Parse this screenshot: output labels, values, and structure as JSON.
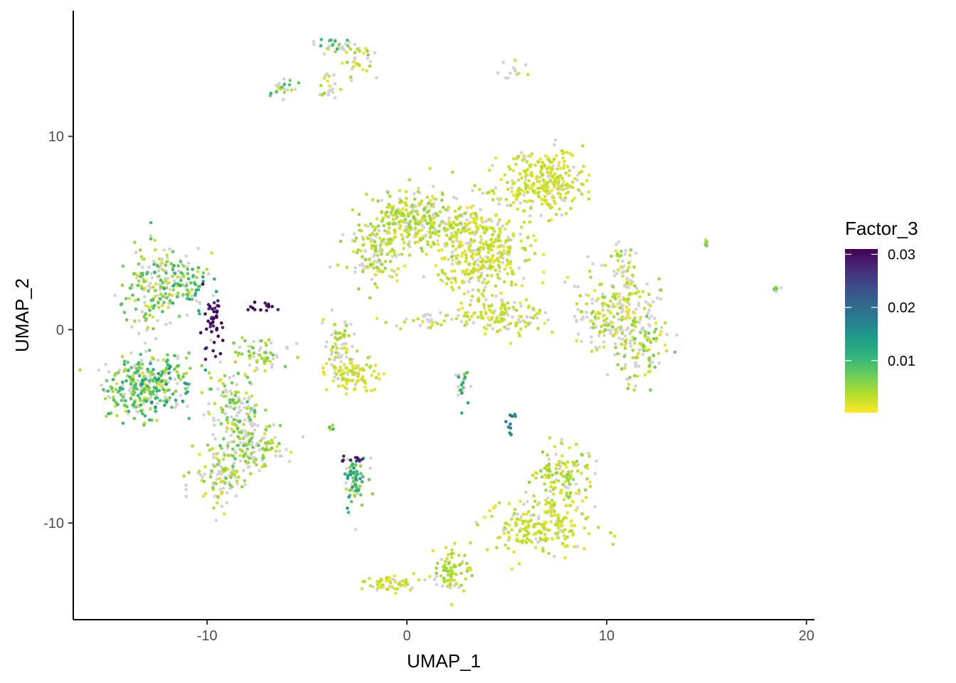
{
  "chart_data": {
    "type": "scatter",
    "title": "",
    "xlabel": "UMAP_1",
    "ylabel": "UMAP_2",
    "xlim": [
      -16.7,
      20.4
    ],
    "ylim": [
      -15.0,
      16.5
    ],
    "x_ticks": [
      -10,
      0,
      10,
      20
    ],
    "x_tick_labels": [
      "-10",
      "0",
      "10",
      "20"
    ],
    "y_ticks": [
      10,
      0,
      -10
    ],
    "y_tick_labels": [
      "10",
      "0",
      "-10"
    ],
    "grid": false,
    "legend": {
      "title": "Factor_3",
      "position": "right",
      "type": "colorbar",
      "range": [
        0.0002,
        0.031
      ],
      "ticks": [
        0.03,
        0.02,
        0.01
      ],
      "tick_labels": [
        "0.03",
        "0.02",
        "0.01"
      ],
      "colors": [
        "#FDE725",
        "#B4DE2C",
        "#6DCD59",
        "#35B779",
        "#1F9E89",
        "#26828E",
        "#31688E",
        "#3E4A89",
        "#482878",
        "#440154"
      ]
    },
    "na_color": "#D3D3D3",
    "note_points": "approximate reconstruction of the point cloud; each cluster listed with center, spread, point count and typical Factor_3 level",
    "clusters": [
      {
        "cx": -13.3,
        "cy": -3.0,
        "sx": 1.1,
        "sy": 1.0,
        "n": 260,
        "level": 0.006,
        "na": 0.25
      },
      {
        "cx": -13.0,
        "cy": 2.0,
        "sx": 0.9,
        "sy": 1.4,
        "n": 140,
        "level": 0.005,
        "na": 0.35
      },
      {
        "cx": -11.2,
        "cy": 2.5,
        "sx": 1.0,
        "sy": 1.0,
        "n": 120,
        "level": 0.007,
        "na": 0.35
      },
      {
        "cx": -11.8,
        "cy": -2.6,
        "sx": 0.9,
        "sy": 0.9,
        "n": 90,
        "level": 0.008,
        "na": 0.3
      },
      {
        "cx": -8.7,
        "cy": -4.2,
        "sx": 0.9,
        "sy": 1.3,
        "n": 150,
        "level": 0.005,
        "na": 0.45
      },
      {
        "cx": -7.8,
        "cy": -6.0,
        "sx": 1.0,
        "sy": 0.8,
        "n": 120,
        "level": 0.004,
        "na": 0.4
      },
      {
        "cx": -9.3,
        "cy": -7.6,
        "sx": 0.9,
        "sy": 0.9,
        "n": 110,
        "level": 0.004,
        "na": 0.5
      },
      {
        "cx": -7.2,
        "cy": -1.2,
        "sx": 1.0,
        "sy": 0.5,
        "n": 60,
        "level": 0.004,
        "na": 0.4
      },
      {
        "cx": -9.8,
        "cy": 0.3,
        "sx": 0.35,
        "sy": 0.9,
        "n": 45,
        "level": 0.03,
        "na": 0.0
      },
      {
        "cx": -7.5,
        "cy": 1.1,
        "sx": 0.5,
        "sy": 0.2,
        "n": 14,
        "level": 0.03,
        "na": 0.0
      },
      {
        "cx": -3.3,
        "cy": -0.8,
        "sx": 0.45,
        "sy": 0.9,
        "n": 70,
        "level": 0.003,
        "na": 0.5
      },
      {
        "cx": -2.5,
        "cy": -2.4,
        "sx": 0.8,
        "sy": 0.5,
        "n": 90,
        "level": 0.002,
        "na": 0.25
      },
      {
        "cx": -2.6,
        "cy": -7.9,
        "sx": 0.4,
        "sy": 0.9,
        "n": 75,
        "level": 0.008,
        "na": 0.35
      },
      {
        "cx": -2.6,
        "cy": -6.8,
        "sx": 0.5,
        "sy": 0.15,
        "n": 10,
        "level": 0.028,
        "na": 0.0
      },
      {
        "cx": -3.8,
        "cy": -5.1,
        "sx": 0.15,
        "sy": 0.15,
        "n": 6,
        "level": 0.006,
        "na": 0.3
      },
      {
        "cx": -3.6,
        "cy": 14.7,
        "sx": 0.5,
        "sy": 0.3,
        "n": 30,
        "level": 0.006,
        "na": 0.5
      },
      {
        "cx": -2.4,
        "cy": 14.0,
        "sx": 0.6,
        "sy": 0.5,
        "n": 30,
        "level": 0.003,
        "na": 0.5
      },
      {
        "cx": -3.9,
        "cy": 12.6,
        "sx": 0.3,
        "sy": 0.5,
        "n": 20,
        "level": 0.003,
        "na": 0.6
      },
      {
        "cx": -6.2,
        "cy": 12.5,
        "sx": 0.4,
        "sy": 0.3,
        "n": 25,
        "level": 0.006,
        "na": 0.5
      },
      {
        "cx": 5.4,
        "cy": 13.4,
        "sx": 0.4,
        "sy": 0.4,
        "n": 14,
        "level": 0.004,
        "na": 0.5
      },
      {
        "cx": 0.5,
        "cy": 5.5,
        "sx": 1.6,
        "sy": 1.0,
        "n": 320,
        "level": 0.003,
        "na": 0.3
      },
      {
        "cx": -1.6,
        "cy": 4.0,
        "sx": 0.9,
        "sy": 1.0,
        "n": 120,
        "level": 0.003,
        "na": 0.3
      },
      {
        "cx": 3.8,
        "cy": 4.0,
        "sx": 1.4,
        "sy": 1.7,
        "n": 420,
        "level": 0.002,
        "na": 0.2
      },
      {
        "cx": 6.8,
        "cy": 7.6,
        "sx": 1.3,
        "sy": 1.0,
        "n": 280,
        "level": 0.002,
        "na": 0.2
      },
      {
        "cx": 5.0,
        "cy": 0.7,
        "sx": 1.2,
        "sy": 0.6,
        "n": 120,
        "level": 0.002,
        "na": 0.3
      },
      {
        "cx": 1.2,
        "cy": 0.5,
        "sx": 1.4,
        "sy": 0.3,
        "n": 40,
        "level": 0.002,
        "na": 0.45
      },
      {
        "cx": 10.6,
        "cy": 0.8,
        "sx": 1.3,
        "sy": 1.3,
        "n": 230,
        "level": 0.003,
        "na": 0.45
      },
      {
        "cx": 11.7,
        "cy": -1.0,
        "sx": 0.9,
        "sy": 1.0,
        "n": 90,
        "level": 0.004,
        "na": 0.4
      },
      {
        "cx": 10.8,
        "cy": 3.4,
        "sx": 0.5,
        "sy": 0.8,
        "n": 40,
        "level": 0.003,
        "na": 0.5
      },
      {
        "cx": 6.6,
        "cy": -10.2,
        "sx": 1.6,
        "sy": 0.9,
        "n": 220,
        "level": 0.002,
        "na": 0.15
      },
      {
        "cx": 7.7,
        "cy": -7.5,
        "sx": 0.9,
        "sy": 1.0,
        "n": 140,
        "level": 0.003,
        "na": 0.25
      },
      {
        "cx": 2.2,
        "cy": -12.5,
        "sx": 0.6,
        "sy": 0.7,
        "n": 80,
        "level": 0.003,
        "na": 0.15
      },
      {
        "cx": -0.6,
        "cy": -13.2,
        "sx": 0.8,
        "sy": 0.3,
        "n": 60,
        "level": 0.002,
        "na": 0.2
      },
      {
        "cx": 2.8,
        "cy": -2.9,
        "sx": 0.2,
        "sy": 0.6,
        "n": 24,
        "level": 0.007,
        "na": 0.35
      },
      {
        "cx": 5.2,
        "cy": -4.8,
        "sx": 0.15,
        "sy": 0.35,
        "n": 10,
        "level": 0.018,
        "na": 0.0
      },
      {
        "cx": 15.0,
        "cy": 4.5,
        "sx": 0.08,
        "sy": 0.1,
        "n": 8,
        "level": 0.004,
        "na": 0.3
      },
      {
        "cx": 18.5,
        "cy": 2.1,
        "sx": 0.12,
        "sy": 0.1,
        "n": 10,
        "level": 0.004,
        "na": 0.3
      }
    ]
  }
}
